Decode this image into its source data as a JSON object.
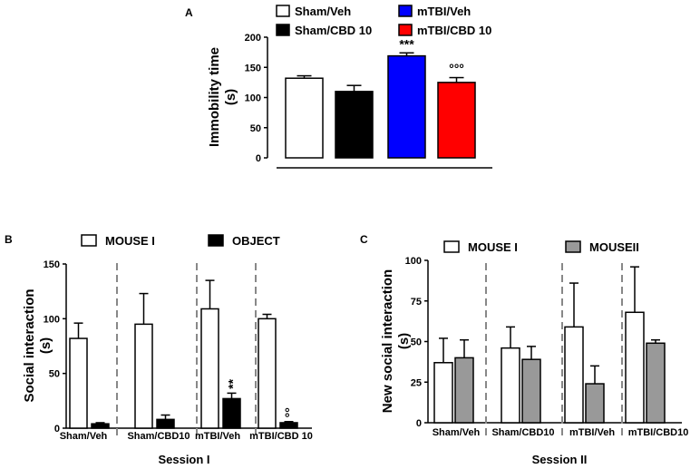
{
  "chart_data": [
    {
      "panel": "A",
      "type": "bar",
      "ylabel": "Immobility time",
      "ylabel_unit": "(s)",
      "ylim": [
        0,
        200
      ],
      "yticks": [
        0,
        50,
        100,
        150,
        200
      ],
      "categories": [
        "Sham/Veh",
        "Sham/CBD 10",
        "mTBI/Veh",
        "mTBI/CBD 10"
      ],
      "values": [
        132,
        110,
        169,
        125
      ],
      "errors": [
        4,
        10,
        5,
        8
      ],
      "colors": [
        "#ffffff",
        "#000000",
        "#0000ff",
        "#ff0000"
      ],
      "legend": [
        "Sham/Veh",
        "mTBI/Veh",
        "Sham/CBD 10",
        "mTBI/CBD 10"
      ],
      "annotations": [
        "",
        "",
        "***",
        "°°°"
      ]
    },
    {
      "panel": "B",
      "type": "bar",
      "ylabel": "Social interaction",
      "ylabel_unit": "(s)",
      "xlabel": "Session I",
      "ylim": [
        0,
        150
      ],
      "yticks": [
        0,
        50,
        100,
        150
      ],
      "categories": [
        "Sham/Veh",
        "Sham/CBD10",
        "mTBI/Veh",
        "mTBI/CBD 10"
      ],
      "series": [
        {
          "name": "MOUSE I",
          "color": "#ffffff",
          "values": [
            82,
            95,
            109,
            100
          ],
          "errors": [
            14,
            28,
            26,
            4
          ]
        },
        {
          "name": "OBJECT",
          "color": "#000000",
          "values": [
            4,
            8,
            27,
            5
          ],
          "errors": [
            1,
            4,
            5,
            1
          ]
        }
      ],
      "annotations": [
        {
          "category": 2,
          "series": 1,
          "text": "**"
        },
        {
          "category": 3,
          "series": 1,
          "text": "°°"
        }
      ]
    },
    {
      "panel": "C",
      "type": "bar",
      "ylabel": "New social interaction",
      "ylabel_unit": "(s)",
      "xlabel": "Session II",
      "ylim": [
        0,
        100
      ],
      "yticks": [
        0,
        25,
        50,
        75,
        100
      ],
      "categories": [
        "Sham/Veh",
        "Sham/CBD10",
        "mTBI/Veh",
        "mTBI/CBD10"
      ],
      "series": [
        {
          "name": "MOUSE I",
          "color": "#ffffff",
          "values": [
            37,
            46,
            59,
            68
          ],
          "errors": [
            15,
            13,
            27,
            28
          ]
        },
        {
          "name": "MOUSEII",
          "color": "#999999",
          "values": [
            40,
            39,
            24,
            49
          ],
          "errors": [
            11,
            8,
            11,
            2
          ]
        }
      ]
    }
  ]
}
